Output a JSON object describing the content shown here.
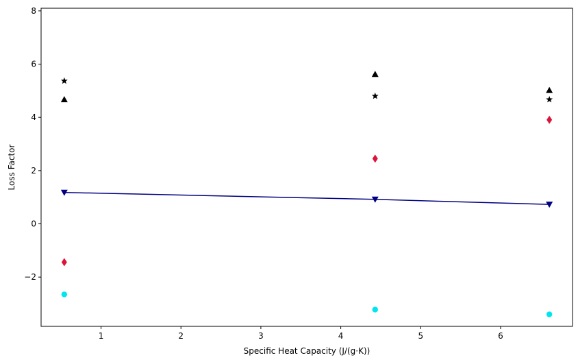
{
  "chart_data": {
    "type": "scatter",
    "title": "",
    "xlabel": "Specific Heat Capacity (J/(g·K))",
    "ylabel": "Loss Factor",
    "xlim": [
      0.25,
      6.9
    ],
    "ylim": [
      -3.85,
      8.1
    ],
    "xticks": [
      1,
      2,
      3,
      4,
      5,
      6
    ],
    "yticks": [
      -2,
      0,
      2,
      4,
      6,
      8
    ],
    "ytick_labels": [
      "−2",
      "0",
      "2",
      "4",
      "6",
      "8"
    ],
    "grid": false,
    "x": [
      0.54,
      4.43,
      6.61
    ],
    "series": [
      {
        "marker": "star",
        "color": "#000000",
        "line": false,
        "values": [
          5.37,
          4.8,
          4.67
        ]
      },
      {
        "marker": "triangle-up",
        "color": "#000000",
        "line": false,
        "values": [
          4.67,
          5.62,
          5.02
        ]
      },
      {
        "marker": "diamond",
        "color": "#dc143c",
        "line": false,
        "values": [
          -1.44,
          2.45,
          3.91
        ]
      },
      {
        "marker": "triangle-down",
        "color": "#000080",
        "line": true,
        "values": [
          1.18,
          0.92,
          0.73
        ]
      },
      {
        "marker": "circle",
        "color": "#00e5ee",
        "line": false,
        "values": [
          -2.65,
          -3.22,
          -3.4
        ]
      }
    ]
  }
}
